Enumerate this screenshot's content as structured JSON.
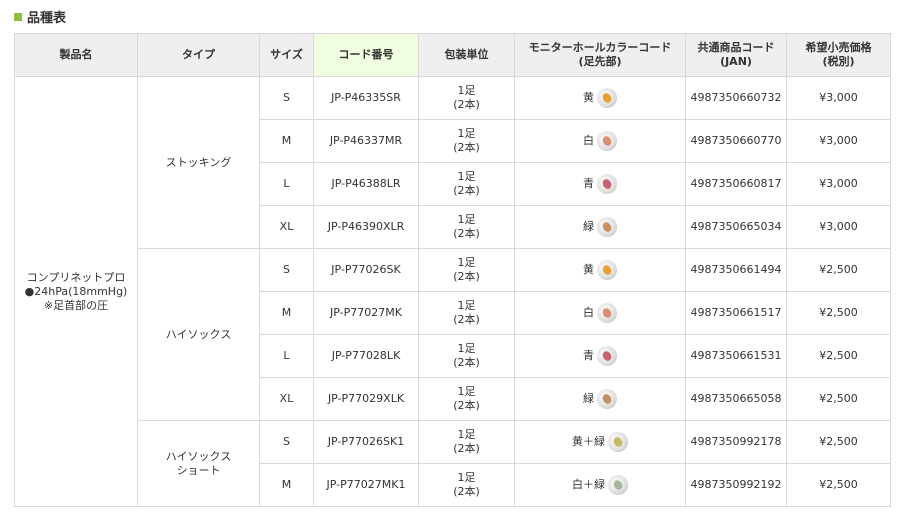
{
  "section_title": "品種表",
  "headers": [
    "製品名",
    "タイプ",
    "サイズ",
    "コード番号",
    "包装単位",
    "モニターホールカラーコード\n(足先部)",
    "共通商品コード\n(JAN)",
    "希望小売価格\n(税別)"
  ],
  "product": {
    "name": "コンプリネットプロ",
    "pressure": "●24hPa(18mmHg)",
    "note": "※足首部の圧"
  },
  "groups": [
    {
      "type": "ストッキング",
      "rows": [
        {
          "size": "S",
          "code": "JP-P46335SR",
          "unit": "1足\n(2本)",
          "color": "黄",
          "icon_color": "#e8a030",
          "jan": "4987350660732",
          "price": "¥3,000"
        },
        {
          "size": "M",
          "code": "JP-P46337MR",
          "unit": "1足\n(2本)",
          "color": "白",
          "icon_color": "#d89070",
          "jan": "4987350660770",
          "price": "¥3,000"
        },
        {
          "size": "L",
          "code": "JP-P46388LR",
          "unit": "1足\n(2本)",
          "color": "青",
          "icon_color": "#c86070",
          "jan": "4987350660817",
          "price": "¥3,000"
        },
        {
          "size": "XL",
          "code": "JP-P46390XLR",
          "unit": "1足\n(2本)",
          "color": "緑",
          "icon_color": "#c89060",
          "jan": "4987350665034",
          "price": "¥3,000"
        }
      ]
    },
    {
      "type": "ハイソックス",
      "rows": [
        {
          "size": "S",
          "code": "JP-P77026SK",
          "unit": "1足\n(2本)",
          "color": "黄",
          "icon_color": "#e8a030",
          "jan": "4987350661494",
          "price": "¥2,500"
        },
        {
          "size": "M",
          "code": "JP-P77027MK",
          "unit": "1足\n(2本)",
          "color": "白",
          "icon_color": "#d89070",
          "jan": "4987350661517",
          "price": "¥2,500"
        },
        {
          "size": "L",
          "code": "JP-P77028LK",
          "unit": "1足\n(2本)",
          "color": "青",
          "icon_color": "#c86070",
          "jan": "4987350661531",
          "price": "¥2,500"
        },
        {
          "size": "XL",
          "code": "JP-P77029XLK",
          "unit": "1足\n(2本)",
          "color": "緑",
          "icon_color": "#c89060",
          "jan": "4987350665058",
          "price": "¥2,500"
        }
      ]
    },
    {
      "type": "ハイソックス\nショート",
      "rows": [
        {
          "size": "S",
          "code": "JP-P77026SK1",
          "unit": "1足\n(2本)",
          "color": "黄＋緑",
          "icon_color": "#c8b860",
          "jan": "4987350992178",
          "price": "¥2,500"
        },
        {
          "size": "M",
          "code": "JP-P77027MK1",
          "unit": "1足\n(2本)",
          "color": "白＋緑",
          "icon_color": "#a8b8a0",
          "jan": "4987350992192",
          "price": "¥2,500"
        }
      ]
    }
  ]
}
